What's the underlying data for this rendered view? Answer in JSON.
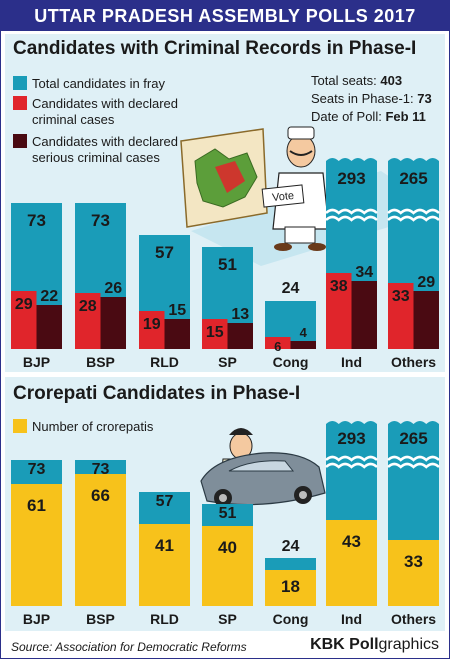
{
  "header": {
    "title": "UTTAR PRADESH ASSEMBLY POLLS 2017"
  },
  "panel1": {
    "title": "Candidates with Criminal Records in Phase-I",
    "legend": [
      {
        "label": "Total candidates in fray",
        "color": "#1a9cb8"
      },
      {
        "label": "Candidates with declared criminal cases",
        "color": "#e0252b"
      },
      {
        "label": "Candidates with declared serious criminal cases",
        "color": "#4a0a12"
      }
    ],
    "info": [
      {
        "label": "Total seats: ",
        "value": "403"
      },
      {
        "label": "Seats in Phase-1: ",
        "value": "73"
      },
      {
        "label": "Date of Poll: ",
        "value": "Feb 11"
      }
    ],
    "vote_sign": "Vote"
  },
  "panel2": {
    "title": "Crorepati Candidates in Phase-I",
    "legend": [
      {
        "label": "Number of crorepatis",
        "color": "#f7c21b"
      }
    ]
  },
  "footer": {
    "source": "Source: Association for Democratic Reforms",
    "brand_bold": "KBK Poll",
    "brand_rest": "graphics"
  },
  "chart_data": [
    {
      "type": "bar",
      "title": "Candidates with Criminal Records in Phase-I",
      "categories": [
        "BJP",
        "BSP",
        "RLD",
        "SP",
        "Cong",
        "Ind",
        "Others"
      ],
      "series": [
        {
          "name": "Total candidates in fray",
          "values": [
            73,
            73,
            57,
            51,
            24,
            293,
            265
          ]
        },
        {
          "name": "Candidates with declared criminal cases",
          "values": [
            29,
            28,
            19,
            15,
            6,
            38,
            33
          ]
        },
        {
          "name": "Candidates with declared serious criminal cases",
          "values": [
            22,
            26,
            15,
            13,
            4,
            34,
            29
          ]
        }
      ],
      "broken_axis_categories": [
        "Ind",
        "Others"
      ]
    },
    {
      "type": "bar",
      "title": "Crorepati Candidates in Phase-I",
      "categories": [
        "BJP",
        "BSP",
        "RLD",
        "SP",
        "Cong",
        "Ind",
        "Others"
      ],
      "series": [
        {
          "name": "Total candidates in fray",
          "values": [
            73,
            73,
            57,
            51,
            24,
            293,
            265
          ]
        },
        {
          "name": "Number of crorepatis",
          "values": [
            61,
            66,
            41,
            40,
            18,
            43,
            33
          ]
        }
      ],
      "broken_axis_categories": [
        "Ind",
        "Others"
      ]
    }
  ]
}
